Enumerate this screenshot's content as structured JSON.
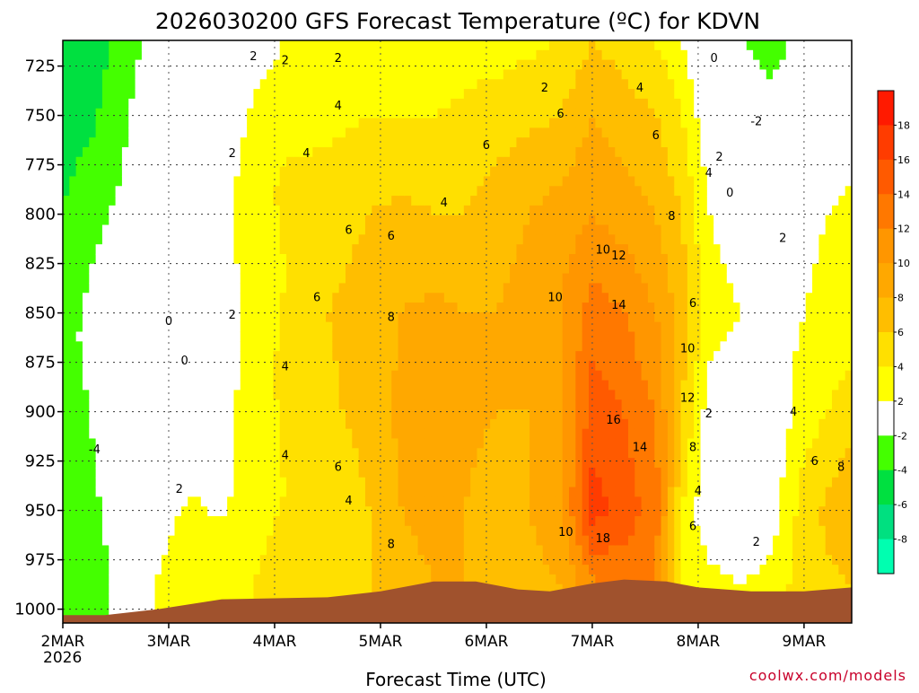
{
  "chart_data": {
    "type": "heatmap",
    "title": "2026030200 GFS Forecast Temperature (ºC) for KDVN",
    "xlabel": "Forecast Time (UTC)",
    "ylabel": "",
    "credit": "coolwx.com/models",
    "x_ticks": [
      "2MAR",
      "3MAR",
      "4MAR",
      "5MAR",
      "6MAR",
      "7MAR",
      "8MAR",
      "9MAR"
    ],
    "x_sub": "2026",
    "xlim_days": [
      0,
      7.45
    ],
    "y_ticks": [
      725,
      750,
      775,
      800,
      825,
      850,
      875,
      900,
      925,
      950,
      975,
      1000
    ],
    "ylim": [
      1007,
      712
    ],
    "y_reversed": true,
    "grid": true,
    "colorbar": {
      "ticks": [
        18,
        16,
        14,
        12,
        10,
        8,
        6,
        4,
        2,
        -2,
        -4,
        -6,
        -8
      ],
      "bands": [
        {
          "min": 18,
          "max": 20,
          "color": "#ff1a00"
        },
        {
          "min": 16,
          "max": 18,
          "color": "#ff3c00"
        },
        {
          "min": 14,
          "max": 16,
          "color": "#ff5a00"
        },
        {
          "min": 12,
          "max": 14,
          "color": "#ff7800"
        },
        {
          "min": 10,
          "max": 12,
          "color": "#ff9600"
        },
        {
          "min": 8,
          "max": 10,
          "color": "#ffa800"
        },
        {
          "min": 6,
          "max": 8,
          "color": "#ffbe00"
        },
        {
          "min": 4,
          "max": 6,
          "color": "#ffe000"
        },
        {
          "min": 2,
          "max": 4,
          "color": "#ffff00"
        },
        {
          "min": -2,
          "max": 2,
          "color": "#ffffff"
        },
        {
          "min": -4,
          "max": -2,
          "color": "#44ff00"
        },
        {
          "min": -6,
          "max": -4,
          "color": "#00e040"
        },
        {
          "min": -8,
          "max": -6,
          "color": "#00e080"
        },
        {
          "min": -10,
          "max": -8,
          "color": "#00ffb0"
        }
      ]
    },
    "ground_color": "#a0522d",
    "surface_pressure": [
      {
        "t": 0.0,
        "p": 1003
      },
      {
        "t": 0.4,
        "p": 1003
      },
      {
        "t": 0.9,
        "p": 1000
      },
      {
        "t": 1.5,
        "p": 995
      },
      {
        "t": 2.5,
        "p": 994
      },
      {
        "t": 3.0,
        "p": 991
      },
      {
        "t": 3.5,
        "p": 986
      },
      {
        "t": 3.9,
        "p": 986
      },
      {
        "t": 4.3,
        "p": 990
      },
      {
        "t": 4.6,
        "p": 991
      },
      {
        "t": 5.0,
        "p": 987
      },
      {
        "t": 5.3,
        "p": 985
      },
      {
        "t": 5.7,
        "p": 986
      },
      {
        "t": 6.0,
        "p": 989
      },
      {
        "t": 6.5,
        "p": 991
      },
      {
        "t": 7.0,
        "p": 991
      },
      {
        "t": 7.45,
        "p": 989
      }
    ],
    "columns": [
      {
        "t": 0.0,
        "profile": [
          [
            712,
            -6
          ],
          [
            740,
            -5
          ],
          [
            800,
            -4
          ],
          [
            860,
            -3
          ],
          [
            920,
            -4
          ],
          [
            1000,
            -3
          ]
        ]
      },
      {
        "t": 0.3,
        "profile": [
          [
            712,
            -5
          ],
          [
            760,
            -4
          ],
          [
            820,
            -2
          ],
          [
            860,
            -1
          ],
          [
            920,
            -2
          ],
          [
            980,
            -3
          ],
          [
            1000,
            -3
          ]
        ]
      },
      {
        "t": 0.6,
        "profile": [
          [
            712,
            -3
          ],
          [
            760,
            -2
          ],
          [
            820,
            -1
          ],
          [
            880,
            0
          ],
          [
            940,
            0.5
          ],
          [
            980,
            -1
          ],
          [
            1000,
            -1
          ]
        ]
      },
      {
        "t": 0.9,
        "profile": [
          [
            712,
            -1
          ],
          [
            760,
            0
          ],
          [
            820,
            0
          ],
          [
            900,
            0.5
          ],
          [
            940,
            1
          ],
          [
            980,
            2
          ],
          [
            1000,
            2
          ]
        ]
      },
      {
        "t": 1.2,
        "profile": [
          [
            712,
            0
          ],
          [
            760,
            0.5
          ],
          [
            820,
            1
          ],
          [
            880,
            0
          ],
          [
            940,
            2
          ],
          [
            980,
            3
          ],
          [
            1000,
            4
          ]
        ]
      },
      {
        "t": 1.5,
        "profile": [
          [
            712,
            0.5
          ],
          [
            760,
            1
          ],
          [
            820,
            1.5
          ],
          [
            880,
            1
          ],
          [
            940,
            1.5
          ],
          [
            990,
            3
          ]
        ]
      },
      {
        "t": 1.8,
        "profile": [
          [
            712,
            1
          ],
          [
            740,
            2
          ],
          [
            790,
            3
          ],
          [
            830,
            2.5
          ],
          [
            880,
            3
          ],
          [
            940,
            3
          ],
          [
            990,
            4
          ]
        ]
      },
      {
        "t": 2.1,
        "profile": [
          [
            712,
            2
          ],
          [
            740,
            3
          ],
          [
            790,
            4.5
          ],
          [
            830,
            4
          ],
          [
            880,
            4.5
          ],
          [
            940,
            4
          ],
          [
            990,
            5
          ]
        ]
      },
      {
        "t": 2.5,
        "profile": [
          [
            712,
            2.5
          ],
          [
            750,
            3.5
          ],
          [
            800,
            5
          ],
          [
            850,
            6
          ],
          [
            900,
            5.5
          ],
          [
            950,
            4
          ],
          [
            990,
            5
          ]
        ]
      },
      {
        "t": 2.9,
        "profile": [
          [
            712,
            2.5
          ],
          [
            750,
            4
          ],
          [
            800,
            6
          ],
          [
            850,
            7
          ],
          [
            900,
            7
          ],
          [
            950,
            6
          ],
          [
            990,
            6
          ]
        ]
      },
      {
        "t": 3.2,
        "profile": [
          [
            712,
            2
          ],
          [
            750,
            4
          ],
          [
            800,
            6.5
          ],
          [
            850,
            8
          ],
          [
            900,
            8.5
          ],
          [
            950,
            8
          ],
          [
            985,
            7
          ]
        ]
      },
      {
        "t": 3.5,
        "profile": [
          [
            712,
            2
          ],
          [
            750,
            4
          ],
          [
            800,
            6
          ],
          [
            850,
            8.5
          ],
          [
            900,
            9.5
          ],
          [
            950,
            9
          ],
          [
            985,
            8
          ]
        ]
      },
      {
        "t": 3.8,
        "profile": [
          [
            712,
            3
          ],
          [
            750,
            4.5
          ],
          [
            800,
            6
          ],
          [
            850,
            8
          ],
          [
            900,
            8.5
          ],
          [
            950,
            8
          ],
          [
            985,
            8
          ]
        ]
      },
      {
        "t": 4.1,
        "profile": [
          [
            712,
            3
          ],
          [
            750,
            5
          ],
          [
            800,
            7
          ],
          [
            850,
            8
          ],
          [
            900,
            8
          ],
          [
            950,
            7
          ],
          [
            988,
            7
          ]
        ]
      },
      {
        "t": 4.4,
        "profile": [
          [
            712,
            3.5
          ],
          [
            750,
            5.5
          ],
          [
            800,
            8
          ],
          [
            850,
            9
          ],
          [
            900,
            8
          ],
          [
            950,
            8
          ],
          [
            990,
            7
          ]
        ]
      },
      {
        "t": 4.7,
        "profile": [
          [
            712,
            4
          ],
          [
            750,
            6
          ],
          [
            800,
            9
          ],
          [
            850,
            10
          ],
          [
            900,
            9
          ],
          [
            950,
            9.5
          ],
          [
            990,
            8
          ]
        ]
      },
      {
        "t": 5.0,
        "profile": [
          [
            712,
            6
          ],
          [
            750,
            8
          ],
          [
            800,
            10
          ],
          [
            850,
            13
          ],
          [
            900,
            15
          ],
          [
            950,
            17
          ],
          [
            985,
            12
          ]
        ]
      },
      {
        "t": 5.3,
        "profile": [
          [
            712,
            5
          ],
          [
            750,
            7
          ],
          [
            800,
            9
          ],
          [
            850,
            12
          ],
          [
            900,
            14
          ],
          [
            950,
            15
          ],
          [
            985,
            13
          ]
        ]
      },
      {
        "t": 5.6,
        "profile": [
          [
            712,
            4
          ],
          [
            750,
            6
          ],
          [
            800,
            8
          ],
          [
            850,
            10
          ],
          [
            900,
            12
          ],
          [
            950,
            13
          ],
          [
            986,
            12
          ]
        ]
      },
      {
        "t": 5.85,
        "profile": [
          [
            712,
            2
          ],
          [
            750,
            4
          ],
          [
            800,
            6
          ],
          [
            850,
            7
          ],
          [
            900,
            6
          ],
          [
            950,
            4
          ],
          [
            988,
            4
          ]
        ]
      },
      {
        "t": 6.1,
        "profile": [
          [
            712,
            -1
          ],
          [
            750,
            0.5
          ],
          [
            800,
            2
          ],
          [
            850,
            3
          ],
          [
            900,
            1
          ],
          [
            950,
            0
          ],
          [
            989,
            3
          ]
        ]
      },
      {
        "t": 6.4,
        "profile": [
          [
            712,
            -2
          ],
          [
            750,
            0
          ],
          [
            800,
            1
          ],
          [
            850,
            2
          ],
          [
            900,
            0
          ],
          [
            950,
            0
          ],
          [
            990,
            2
          ]
        ]
      },
      {
        "t": 6.7,
        "profile": [
          [
            712,
            -3
          ],
          [
            750,
            -1
          ],
          [
            800,
            0.5
          ],
          [
            850,
            1
          ],
          [
            900,
            0.5
          ],
          [
            950,
            1
          ],
          [
            990,
            3
          ]
        ]
      },
      {
        "t": 7.0,
        "profile": [
          [
            712,
            -1
          ],
          [
            750,
            0
          ],
          [
            800,
            1.5
          ],
          [
            850,
            2
          ],
          [
            900,
            3
          ],
          [
            950,
            5
          ],
          [
            990,
            5
          ]
        ]
      },
      {
        "t": 7.45,
        "profile": [
          [
            712,
            0
          ],
          [
            750,
            1
          ],
          [
            800,
            2.5
          ],
          [
            850,
            3
          ],
          [
            900,
            5
          ],
          [
            950,
            8
          ],
          [
            990,
            6
          ]
        ]
      }
    ],
    "contour_labels": [
      {
        "text": "2",
        "t": 1.8,
        "p": 722
      },
      {
        "t": 1.0,
        "p": 856,
        "text": "0"
      },
      {
        "t": 1.15,
        "p": 876,
        "text": "0"
      },
      {
        "t": 0.3,
        "p": 921,
        "text": "-4"
      },
      {
        "t": 1.1,
        "p": 941,
        "text": "2"
      },
      {
        "t": 1.6,
        "p": 771,
        "text": "2"
      },
      {
        "t": 1.6,
        "p": 853,
        "text": "2"
      },
      {
        "t": 2.1,
        "p": 724,
        "text": "2"
      },
      {
        "t": 2.3,
        "p": 771,
        "text": "4"
      },
      {
        "t": 2.4,
        "p": 844,
        "text": "6"
      },
      {
        "t": 2.1,
        "p": 879,
        "text": "4"
      },
      {
        "t": 2.1,
        "p": 924,
        "text": "4"
      },
      {
        "t": 2.6,
        "p": 723,
        "text": "2"
      },
      {
        "t": 2.6,
        "p": 747,
        "text": "4"
      },
      {
        "t": 2.7,
        "p": 810,
        "text": "6"
      },
      {
        "t": 2.6,
        "p": 930,
        "text": "6"
      },
      {
        "t": 2.7,
        "p": 947,
        "text": "4"
      },
      {
        "t": 3.1,
        "p": 813,
        "text": "6"
      },
      {
        "t": 3.1,
        "p": 854,
        "text": "8"
      },
      {
        "t": 3.1,
        "p": 969,
        "text": "8"
      },
      {
        "t": 3.6,
        "p": 796,
        "text": "4"
      },
      {
        "t": 4.0,
        "p": 767,
        "text": "6"
      },
      {
        "t": 4.55,
        "p": 738,
        "text": "2"
      },
      {
        "t": 4.7,
        "p": 751,
        "text": "6"
      },
      {
        "t": 4.65,
        "p": 844,
        "text": "10"
      },
      {
        "t": 4.75,
        "p": 963,
        "text": "10"
      },
      {
        "t": 5.1,
        "p": 820,
        "text": "10"
      },
      {
        "t": 5.25,
        "p": 823,
        "text": "12"
      },
      {
        "t": 5.25,
        "p": 848,
        "text": "14"
      },
      {
        "t": 5.2,
        "p": 906,
        "text": "16"
      },
      {
        "t": 5.45,
        "p": 920,
        "text": "14"
      },
      {
        "t": 5.1,
        "p": 966,
        "text": "18"
      },
      {
        "t": 5.45,
        "p": 738,
        "text": "4"
      },
      {
        "t": 5.6,
        "p": 762,
        "text": "6"
      },
      {
        "t": 5.75,
        "p": 803,
        "text": "8"
      },
      {
        "t": 5.95,
        "p": 847,
        "text": "6"
      },
      {
        "t": 5.9,
        "p": 870,
        "text": "10"
      },
      {
        "t": 5.9,
        "p": 895,
        "text": "12"
      },
      {
        "t": 5.95,
        "p": 920,
        "text": "8"
      },
      {
        "t": 6.0,
        "p": 942,
        "text": "4"
      },
      {
        "t": 5.95,
        "p": 960,
        "text": "6"
      },
      {
        "t": 6.1,
        "p": 781,
        "text": "4"
      },
      {
        "t": 6.2,
        "p": 773,
        "text": "2"
      },
      {
        "t": 6.1,
        "p": 903,
        "text": "2"
      },
      {
        "t": 6.55,
        "p": 968,
        "text": "2"
      },
      {
        "t": 6.55,
        "p": 755,
        "text": "-2"
      },
      {
        "t": 6.3,
        "p": 791,
        "text": "0"
      },
      {
        "t": 6.8,
        "p": 814,
        "text": "2"
      },
      {
        "t": 6.15,
        "p": 723,
        "text": "0"
      },
      {
        "t": 6.9,
        "p": 902,
        "text": "4"
      },
      {
        "t": 7.1,
        "p": 927,
        "text": "6"
      },
      {
        "t": 7.35,
        "p": 930,
        "text": "8"
      }
    ]
  }
}
